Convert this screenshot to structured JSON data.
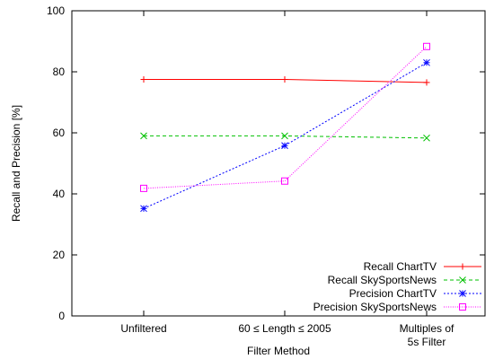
{
  "chart_data": {
    "type": "line",
    "categories": [
      "Unfiltered",
      "60 ≤ Length ≤ 2005",
      "Multiples of 5s Filter"
    ],
    "category_lines": [
      [
        "Unfiltered"
      ],
      [
        "60 ≤ Length ≤ 2005"
      ],
      [
        "Multiples of",
        "5s Filter"
      ]
    ],
    "xlabel": "Filter Method",
    "ylabel": "Recall and Precision [%]",
    "ylim": [
      0,
      100
    ],
    "yticks": [
      0,
      20,
      40,
      60,
      80,
      100
    ],
    "grid": false,
    "legend_position": "bottom-right",
    "series": [
      {
        "name": "Recall ChartTV",
        "values": [
          77.5,
          77.5,
          76.5
        ],
        "color": "#ff0000",
        "marker": "plus",
        "dash": "solid"
      },
      {
        "name": "Recall SkySportsNews",
        "values": [
          59,
          59,
          58.3
        ],
        "color": "#00c000",
        "marker": "cross",
        "dash": "dashed"
      },
      {
        "name": "Precision ChartTV",
        "values": [
          35.2,
          55.8,
          83
        ],
        "color": "#0000ff",
        "marker": "star",
        "dash": "dotted"
      },
      {
        "name": "Precision SkySportsNews",
        "values": [
          41.8,
          44.2,
          88.3
        ],
        "color": "#ff00ff",
        "marker": "square",
        "dash": "fine-dotted"
      }
    ]
  }
}
